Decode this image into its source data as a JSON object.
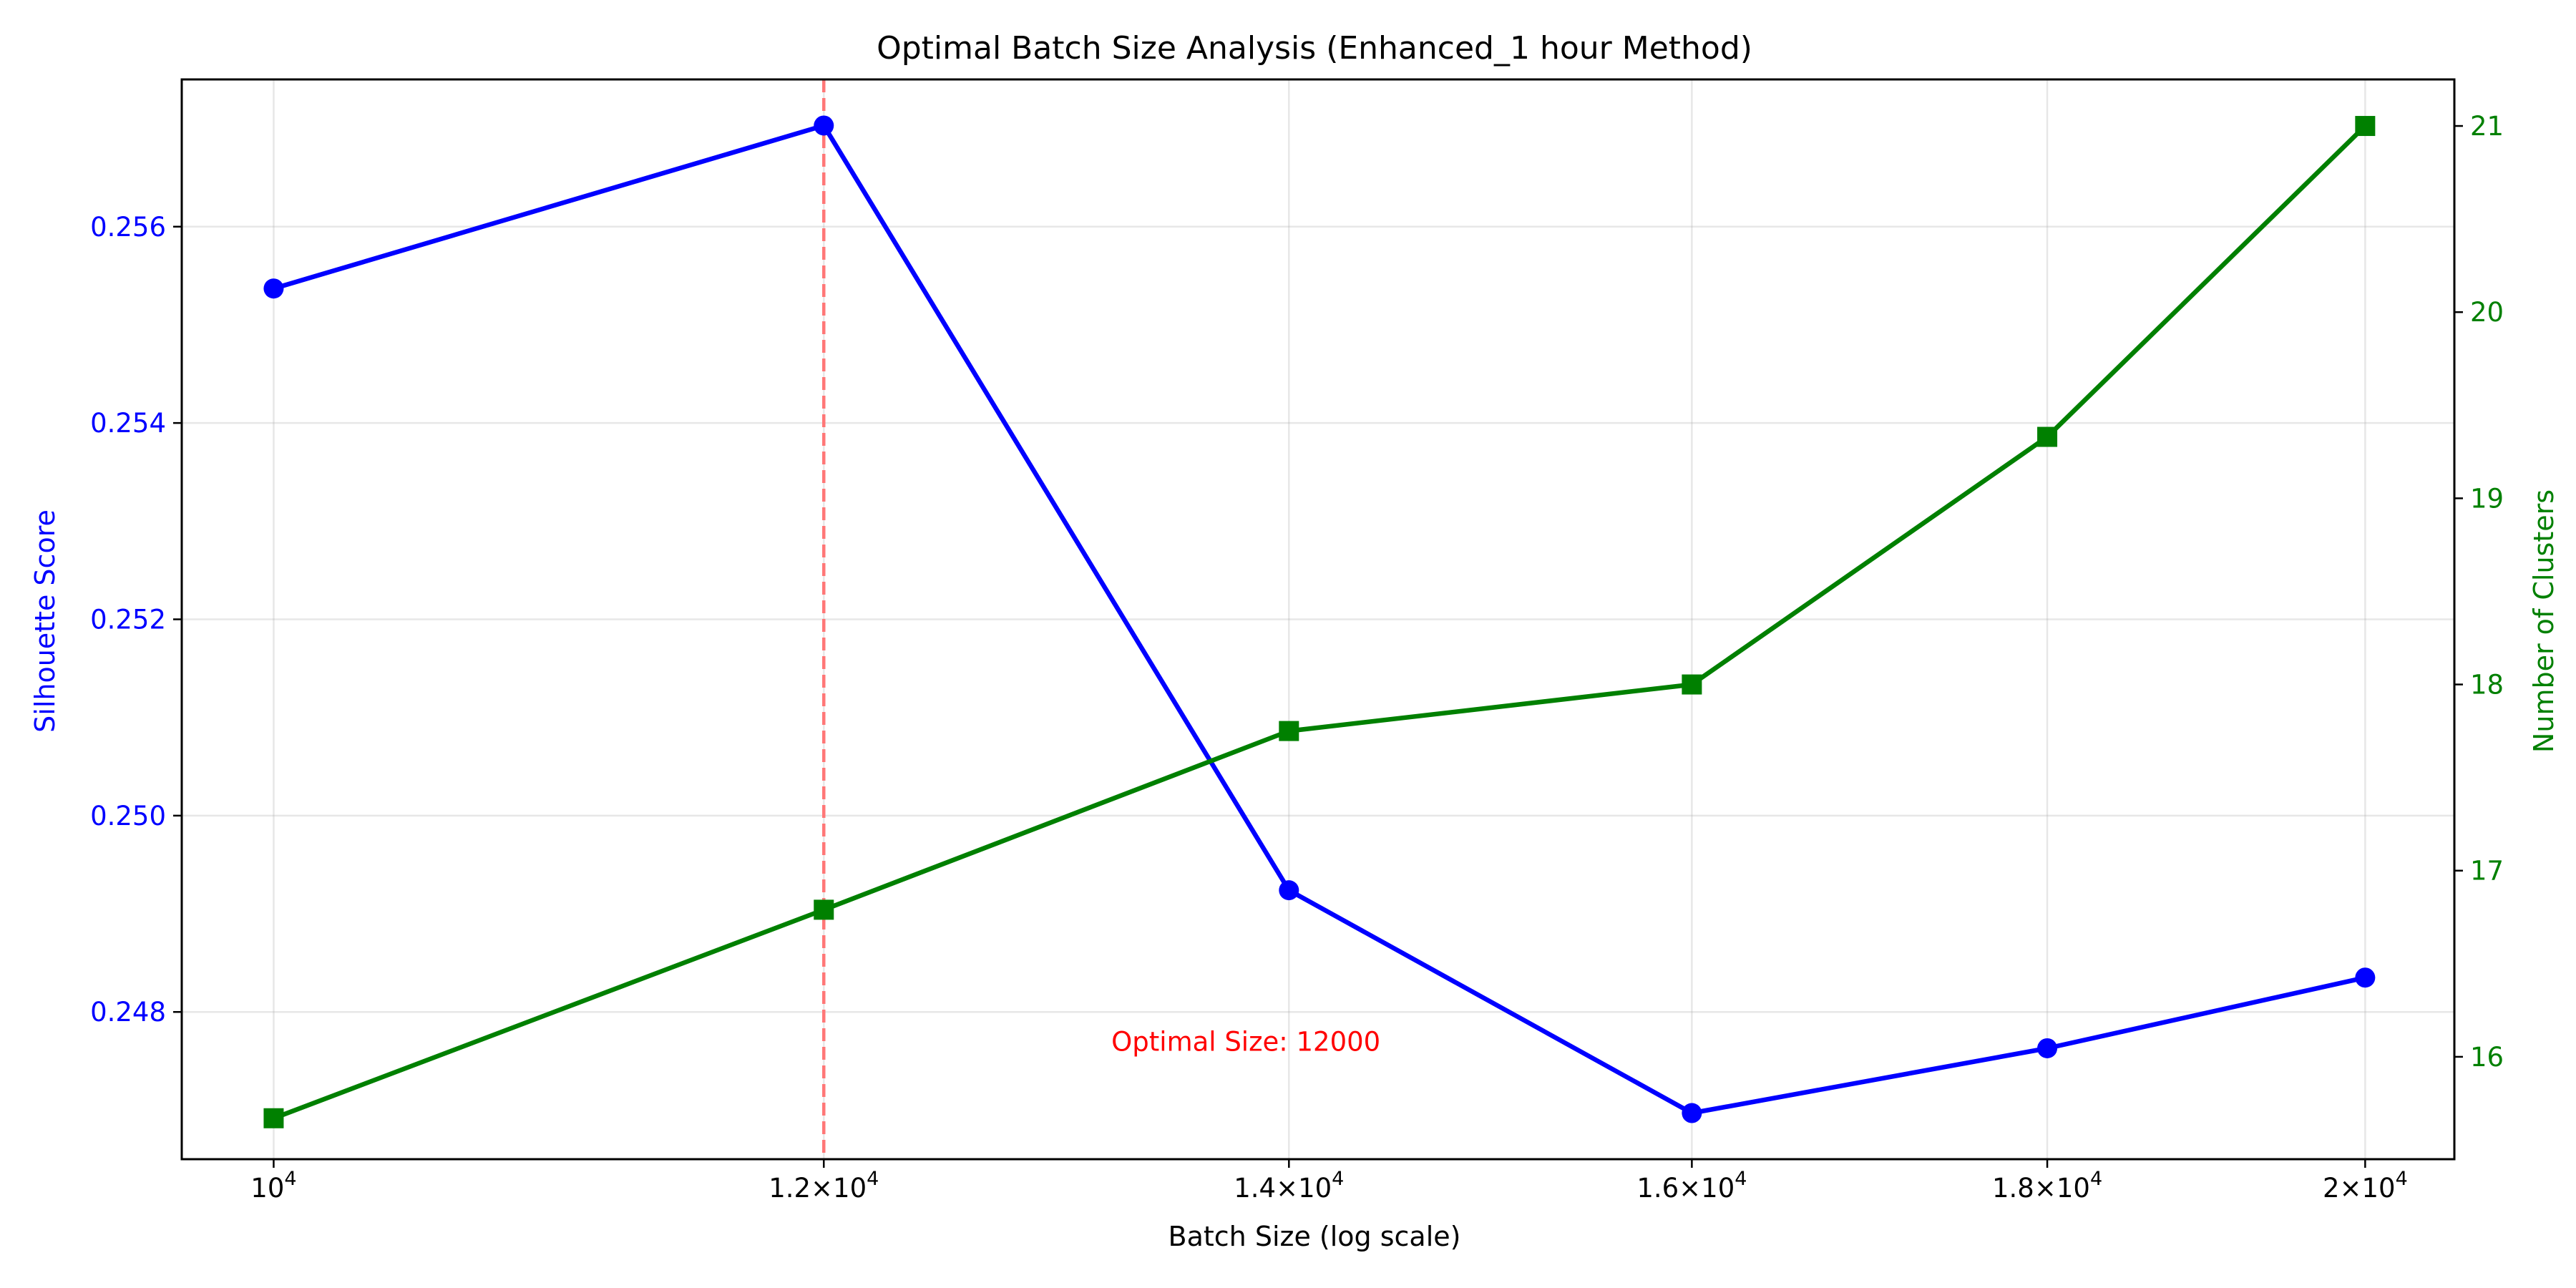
{
  "chart_data": {
    "type": "line",
    "title": "Optimal Batch Size Analysis (Enhanced_1 hour Method)",
    "xlabel": "Batch Size (log scale)",
    "ylabel": "Silhouette Score",
    "y2label": "Number of Clusters",
    "xscale": "log",
    "x": [
      10000,
      12000,
      14000,
      16000,
      18000,
      20000
    ],
    "xlim": [
      9700,
      20600
    ],
    "xticks": [
      {
        "value": 10000,
        "mantissa": "",
        "base": "10",
        "exp": "4"
      },
      {
        "value": 12000,
        "mantissa": "1.2",
        "base": "10",
        "exp": "4"
      },
      {
        "value": 14000,
        "mantissa": "1.4",
        "base": "10",
        "exp": "4"
      },
      {
        "value": 16000,
        "mantissa": "1.6",
        "base": "10",
        "exp": "4"
      },
      {
        "value": 18000,
        "mantissa": "1.8",
        "base": "10",
        "exp": "4"
      },
      {
        "value": 20000,
        "mantissa": "2",
        "base": "10",
        "exp": "4"
      }
    ],
    "ylim": [
      0.2465,
      0.2575
    ],
    "yticks": [
      "0.248",
      "0.250",
      "0.252",
      "0.254",
      "0.256"
    ],
    "y2lim": [
      15.45,
      21.25
    ],
    "y2ticks": [
      "16",
      "17",
      "18",
      "19",
      "20",
      "21"
    ],
    "grid": true,
    "series": [
      {
        "axis": "left",
        "color": "#0000ff",
        "marker": "circle",
        "values": [
          0.25537,
          0.25703,
          0.24924,
          0.24697,
          0.24763,
          0.24835
        ]
      },
      {
        "axis": "right",
        "color": "#008000",
        "marker": "square",
        "values": [
          15.67,
          16.79,
          17.75,
          18.0,
          19.33,
          21.0
        ]
      }
    ],
    "vline": {
      "x": 12000,
      "color": "#ff7777",
      "style": "dashed"
    },
    "annotation": {
      "text": "Optimal Size: 12000",
      "x": 13200,
      "y": 0.2477,
      "color": "#ff0000"
    }
  }
}
